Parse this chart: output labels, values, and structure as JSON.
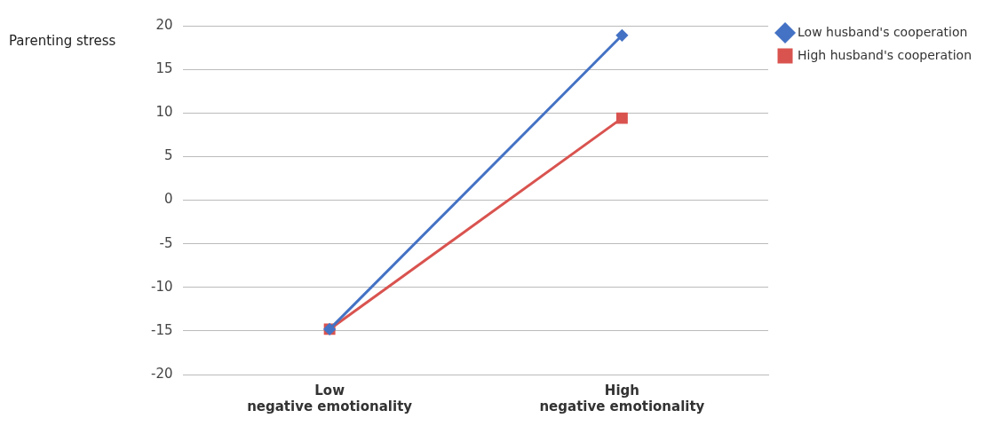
{
  "chart_data": {
    "type": "line",
    "ylabel": "Parenting stress",
    "categories": [
      "Low\nnegative emotionality",
      "High\nnegative emotionality"
    ],
    "series": [
      {
        "name": "Low husband's cooperation",
        "color": "#4472c4",
        "values": [
          -14.8,
          18.9
        ],
        "marker": "diamond"
      },
      {
        "name": "High husband's cooperation",
        "color": "#d9534f",
        "values": [
          -14.8,
          9.4
        ],
        "marker": "square"
      }
    ],
    "ylim": [
      -20,
      20
    ],
    "yticks": [
      -20,
      -15,
      -10,
      -5,
      0,
      5,
      10,
      15,
      20
    ],
    "grid": "y",
    "legend": "top right",
    "line_style": "solid"
  }
}
